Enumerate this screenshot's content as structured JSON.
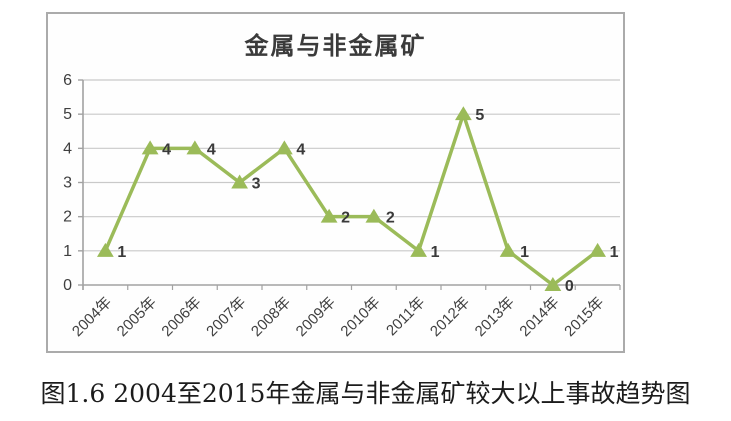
{
  "chart_data": {
    "type": "line",
    "title": "金属与非金属矿",
    "categories": [
      "2004年",
      "2005年",
      "2006年",
      "2007年",
      "2008年",
      "2009年",
      "2010年",
      "2011年",
      "2012年",
      "2013年",
      "2014年",
      "2015年"
    ],
    "series": [
      {
        "name": "金属与非金属矿",
        "values": [
          1,
          4,
          4,
          3,
          4,
          2,
          2,
          1,
          5,
          1,
          0,
          1
        ]
      }
    ],
    "data_labels": [
      "1",
      "4",
      "4",
      "3",
      "4",
      "2",
      "2",
      "1",
      "5",
      "1",
      "0",
      "1"
    ],
    "y_ticks": [
      0,
      1,
      2,
      3,
      4,
      5,
      6
    ],
    "ylim": [
      0,
      6
    ],
    "grid": "horizontal",
    "legend": "none",
    "marker": "triangle",
    "x_label_rotation": -45
  },
  "caption": "图1.6 2004至2015年金属与非金属矿较大以上事故趋势图",
  "colors": {
    "line": "#9bbb59",
    "marker_fill": "#9bbb59",
    "grid": "#c9c9c9",
    "axis": "#a2a2a2",
    "tick_text": "#3f3f3f",
    "data_label_text": "#3a3a3a",
    "title_text": "#3b3b3b",
    "frame_border": "#ababab",
    "caption_text": "#1c1c1c"
  }
}
